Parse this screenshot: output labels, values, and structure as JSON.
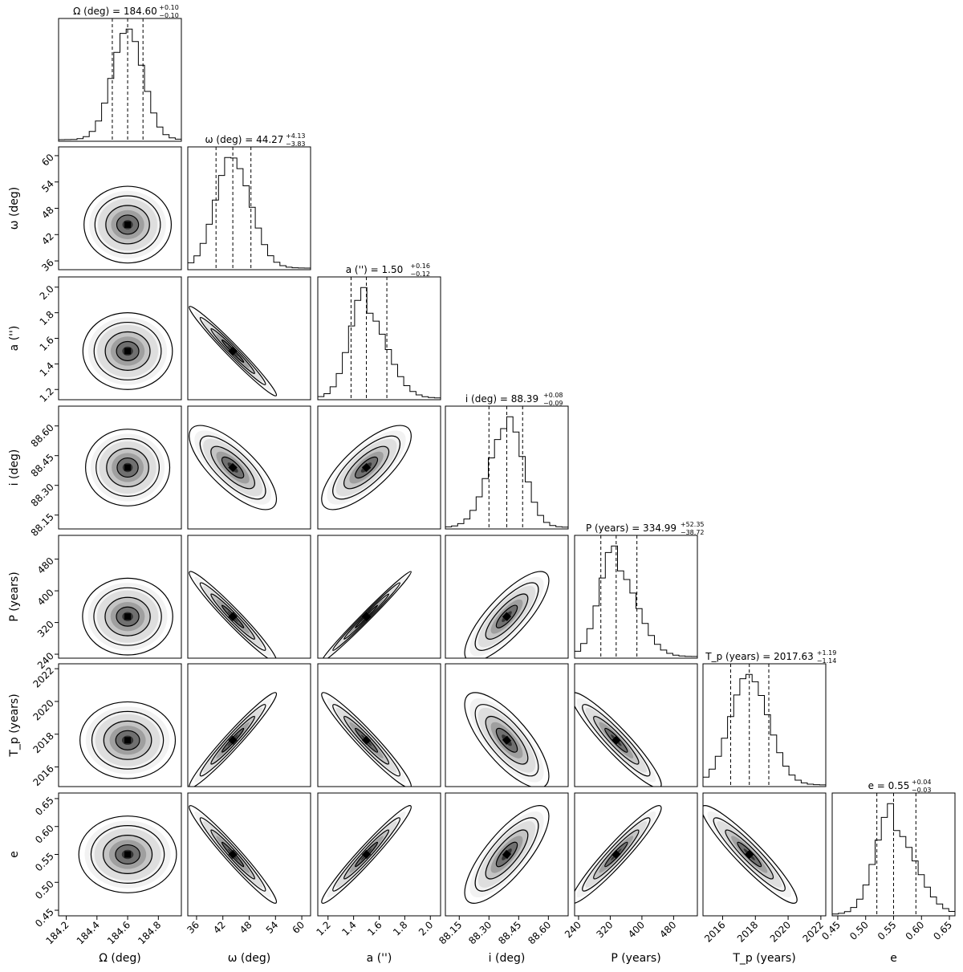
{
  "chart_data": {
    "type": "corner",
    "parameters": [
      {
        "key": "Omega",
        "label": "Ω (deg)",
        "title": "Ω (deg) = 184.60",
        "title_sup": "+0.10",
        "title_sub": "−0.10",
        "median": 184.6,
        "lo": 184.5,
        "hi": 184.7,
        "sd": 0.1,
        "range": [
          184.15,
          184.95
        ],
        "ticks": [
          184.2,
          184.4,
          184.6,
          184.8
        ],
        "tick_labels": [
          "184.2",
          "184.4",
          "184.6",
          "184.8"
        ]
      },
      {
        "key": "omega",
        "label": "ω (deg)",
        "title": "ω (deg) = 44.27",
        "title_sup": "+4.13",
        "title_sub": "−3.83",
        "median": 44.27,
        "lo": 40.44,
        "hi": 48.4,
        "sd": 4.0,
        "range": [
          34,
          62
        ],
        "ticks": [
          36,
          42,
          48,
          54,
          60
        ],
        "tick_labels": [
          "36",
          "42",
          "48",
          "54",
          "60"
        ]
      },
      {
        "key": "a",
        "label": "a ('')",
        "title": "a ('') = 1.50",
        "title_sup": "+0.16",
        "title_sub": "−0.12",
        "median": 1.5,
        "lo": 1.38,
        "hi": 1.66,
        "sd": 0.14,
        "range": [
          1.12,
          2.08
        ],
        "ticks": [
          1.2,
          1.4,
          1.6,
          1.8,
          2.0
        ],
        "tick_labels": [
          "1.2",
          "1.4",
          "1.6",
          "1.8",
          "2.0"
        ]
      },
      {
        "key": "i",
        "label": "i (deg)",
        "title": "i (deg) = 88.39",
        "title_sup": "+0.08",
        "title_sub": "−0.09",
        "median": 88.39,
        "lo": 88.3,
        "hi": 88.47,
        "sd": 0.085,
        "range": [
          88.08,
          88.7
        ],
        "ticks": [
          88.15,
          88.3,
          88.45,
          88.6
        ],
        "tick_labels": [
          "88.15",
          "88.30",
          "88.45",
          "88.60"
        ]
      },
      {
        "key": "P",
        "label": "P (years)",
        "title": "P (years) = 334.99",
        "title_sup": "+52.35",
        "title_sub": "−38.72",
        "median": 334.99,
        "lo": 296.27,
        "hi": 387.34,
        "sd": 45,
        "range": [
          230,
          540
        ],
        "ticks": [
          240,
          320,
          400,
          480
        ],
        "tick_labels": [
          "240",
          "320",
          "400",
          "480"
        ]
      },
      {
        "key": "Tp",
        "label": "T_p (years)",
        "title": "T_p (years) = 2017.63",
        "title_sup": "+1.19",
        "title_sub": "−1.14",
        "median": 2017.63,
        "lo": 2016.49,
        "hi": 2018.82,
        "sd": 1.16,
        "range": [
          2014.8,
          2022.3
        ],
        "ticks": [
          2016,
          2018,
          2020,
          2022
        ],
        "tick_labels": [
          "2016",
          "2018",
          "2020",
          "2022"
        ]
      },
      {
        "key": "e",
        "label": "e",
        "title": "e = 0.55",
        "title_sup": "+0.04",
        "title_sub": "−0.03",
        "median": 0.55,
        "lo": 0.52,
        "hi": 0.59,
        "sd": 0.035,
        "range": [
          0.44,
          0.66
        ],
        "ticks": [
          0.45,
          0.5,
          0.55,
          0.6,
          0.65
        ],
        "tick_labels": [
          "0.45",
          "0.50",
          "0.55",
          "0.60",
          "0.65"
        ]
      }
    ],
    "correlations": [
      [
        1,
        0,
        0,
        0,
        0,
        0,
        0
      ],
      [
        0,
        1,
        -0.98,
        -0.75,
        -0.97,
        0.97,
        -0.97
      ],
      [
        0,
        -0.98,
        1,
        0.75,
        0.99,
        -0.96,
        0.97
      ],
      [
        0,
        -0.75,
        0.75,
        1,
        0.8,
        -0.75,
        0.78
      ],
      [
        0,
        -0.97,
        0.99,
        0.8,
        1,
        -0.93,
        0.95
      ],
      [
        0,
        0.97,
        -0.96,
        -0.75,
        -0.93,
        1,
        -0.93
      ],
      [
        0,
        -0.97,
        0.97,
        0.78,
        0.95,
        -0.93,
        1
      ]
    ],
    "quantiles": [
      0.16,
      0.5,
      0.84
    ],
    "contour_levels_sigma": [
      0.5,
      1.0,
      1.5,
      2.0
    ],
    "legend": "none",
    "grid": false
  }
}
